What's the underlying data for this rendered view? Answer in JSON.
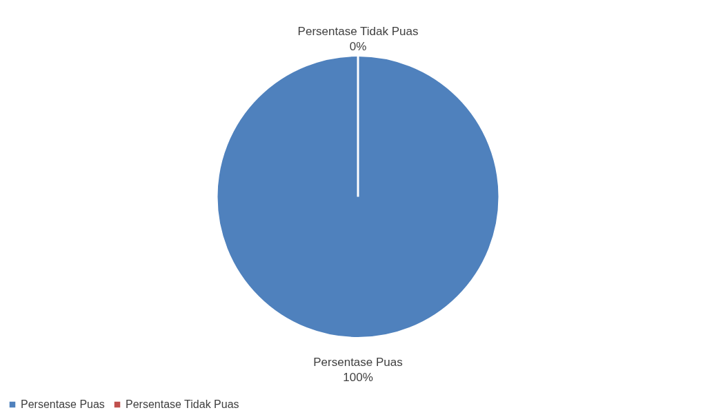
{
  "chart_data": {
    "type": "pie",
    "categories": [
      "Persentase Puas",
      "Persentase Tidak Puas"
    ],
    "values": [
      100,
      0
    ],
    "colors": [
      "#4f81bd",
      "#c0504d"
    ],
    "value_labels": [
      "100%",
      "0%"
    ],
    "legend": "bottom"
  }
}
